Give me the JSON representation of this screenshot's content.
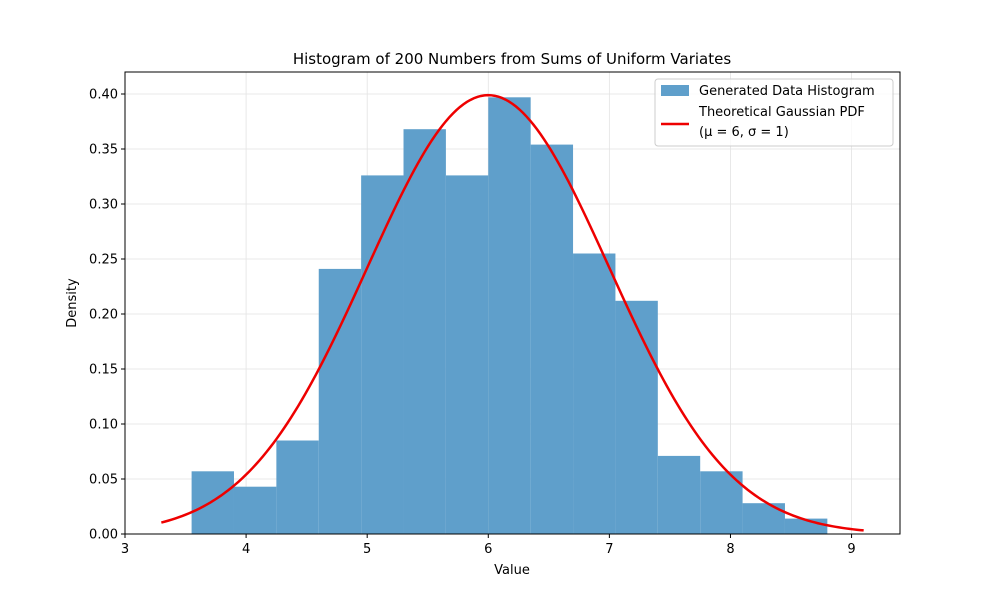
{
  "chart_data": {
    "type": "bar",
    "title": "Histogram of 200 Numbers from Sums of Uniform Variates",
    "xlabel": "Value",
    "ylabel": "Density",
    "xlim": [
      3.0,
      9.4
    ],
    "ylim": [
      0.0,
      0.42
    ],
    "xticks": [
      3,
      4,
      5,
      6,
      7,
      8,
      9
    ],
    "xtick_labels": [
      "3",
      "4",
      "5",
      "6",
      "7",
      "8",
      "9"
    ],
    "yticks": [
      0.0,
      0.05,
      0.1,
      0.15,
      0.2,
      0.25,
      0.3,
      0.35,
      0.4
    ],
    "ytick_labels": [
      "0.00",
      "0.05",
      "0.10",
      "0.15",
      "0.20",
      "0.25",
      "0.30",
      "0.35",
      "0.40"
    ],
    "grid": true,
    "legend_position": "top-right",
    "histogram": {
      "name": "Generated Data Histogram",
      "color": "#5f9fcb",
      "bins": [
        {
          "x0": 3.55,
          "x1": 3.9,
          "density": 0.057
        },
        {
          "x0": 3.9,
          "x1": 4.25,
          "density": 0.043
        },
        {
          "x0": 4.25,
          "x1": 4.6,
          "density": 0.085
        },
        {
          "x0": 4.6,
          "x1": 4.95,
          "density": 0.241
        },
        {
          "x0": 4.95,
          "x1": 5.3,
          "density": 0.326
        },
        {
          "x0": 5.3,
          "x1": 5.65,
          "density": 0.368
        },
        {
          "x0": 5.65,
          "x1": 6.0,
          "density": 0.326
        },
        {
          "x0": 6.0,
          "x1": 6.35,
          "density": 0.397
        },
        {
          "x0": 6.35,
          "x1": 6.7,
          "density": 0.354
        },
        {
          "x0": 6.7,
          "x1": 7.05,
          "density": 0.255
        },
        {
          "x0": 7.05,
          "x1": 7.4,
          "density": 0.212
        },
        {
          "x0": 7.4,
          "x1": 7.75,
          "density": 0.071
        },
        {
          "x0": 7.75,
          "x1": 8.1,
          "density": 0.057
        },
        {
          "x0": 8.1,
          "x1": 8.45,
          "density": 0.028
        },
        {
          "x0": 8.45,
          "x1": 8.8,
          "density": 0.014
        }
      ]
    },
    "curve": {
      "name_line1": "Theoretical Gaussian PDF",
      "name_line2": "(μ = 6, σ = 1)",
      "color": "#ee0000",
      "mu": 6,
      "sigma": 1,
      "x_range": [
        3.3,
        9.1
      ]
    }
  }
}
